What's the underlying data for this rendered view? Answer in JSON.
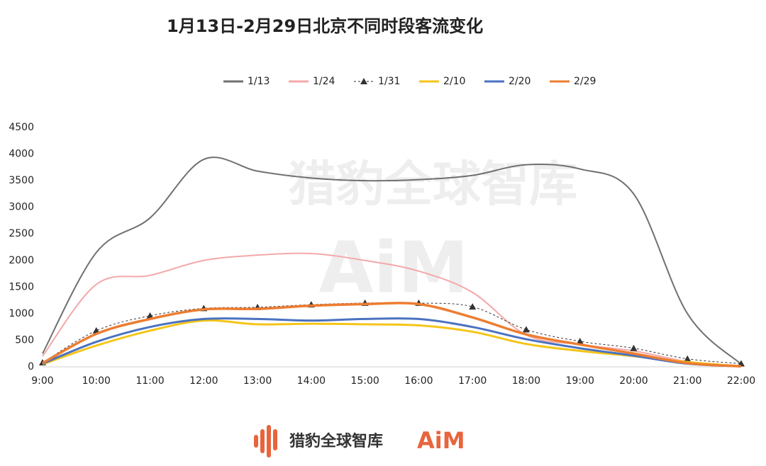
{
  "chart_data": {
    "type": "line",
    "title": "1月13日-2月29日北京不同时段客流变化",
    "categories": [
      "9:00",
      "10:00",
      "11:00",
      "12:00",
      "13:00",
      "14:00",
      "15:00",
      "16:00",
      "17:00",
      "18:00",
      "19:00",
      "20:00",
      "21:00",
      "22:00"
    ],
    "series": [
      {
        "name": "1/13",
        "color": "#707070",
        "values": [
          250,
          2150,
          2800,
          3900,
          3680,
          3550,
          3500,
          3520,
          3600,
          3800,
          3720,
          3250,
          1000,
          50
        ]
      },
      {
        "name": "1/24",
        "color": "#f4a8a8",
        "values": [
          200,
          1550,
          1720,
          2000,
          2100,
          2130,
          2000,
          1800,
          1400,
          600,
          420,
          300,
          100,
          20
        ]
      },
      {
        "name": "1/31",
        "color": "#333333",
        "dashed": true,
        "marker": "triangle",
        "values": [
          80,
          680,
          960,
          1100,
          1120,
          1170,
          1200,
          1200,
          1130,
          700,
          480,
          350,
          150,
          60
        ]
      },
      {
        "name": "2/10",
        "color": "#f5c518",
        "values": [
          50,
          400,
          680,
          870,
          800,
          810,
          800,
          780,
          660,
          430,
          300,
          200,
          90,
          10
        ]
      },
      {
        "name": "2/20",
        "color": "#4a72c0",
        "values": [
          60,
          470,
          750,
          900,
          900,
          870,
          900,
          900,
          750,
          520,
          350,
          210,
          60,
          10
        ]
      },
      {
        "name": "2/29",
        "color": "#ed7d31",
        "values": [
          70,
          620,
          900,
          1080,
          1090,
          1150,
          1180,
          1180,
          930,
          610,
          420,
          250,
          70,
          10
        ]
      }
    ],
    "ylim": [
      0,
      4500
    ],
    "yticks": [
      0,
      500,
      1000,
      1500,
      2000,
      2500,
      3000,
      3500,
      4000,
      4500
    ],
    "legend": "top",
    "smooth": true,
    "watermark": "猎豹全球智库",
    "watermark_logo": "AiM",
    "footer_brand": "猎豹全球智库",
    "footer_logo": "AiM"
  }
}
